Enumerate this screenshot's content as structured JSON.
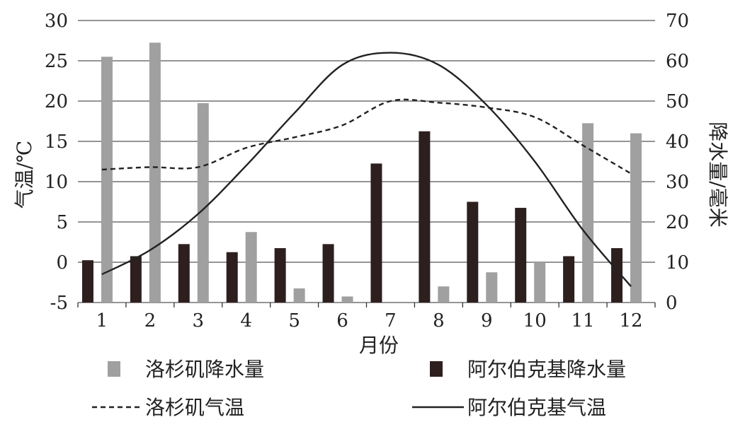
{
  "chart_data": {
    "type": "bar",
    "categories": [
      "1",
      "2",
      "3",
      "4",
      "5",
      "6",
      "7",
      "8",
      "9",
      "10",
      "11",
      "12"
    ],
    "xlabel": "月份",
    "ylabel_left": "气温/℃",
    "ylabel_right": "降水量/毫米",
    "ylim_left": [
      -5,
      30
    ],
    "ylim_right": [
      0,
      70
    ],
    "yticks_left": [
      "30",
      "25",
      "20",
      "15",
      "10",
      "5",
      "0",
      "-5"
    ],
    "yticks_right": [
      "70",
      "60",
      "50",
      "40",
      "30",
      "20",
      "10",
      "0"
    ],
    "grid": "horizontal",
    "legend_position": "bottom",
    "series": [
      {
        "name": "洛杉矶降水量",
        "kind": "bar",
        "axis": "right",
        "color": "#a0a0a0",
        "values": [
          61,
          64.5,
          49.5,
          17.5,
          3.5,
          1.5,
          0,
          4,
          7.5,
          10,
          44.5,
          42
        ]
      },
      {
        "name": "阿尔伯克基降水量",
        "kind": "bar",
        "axis": "right",
        "color": "#2e1f1f",
        "values": [
          10.5,
          11.5,
          14.5,
          12.5,
          13.5,
          14.5,
          34.5,
          42.5,
          25,
          23.5,
          11.5,
          13.5
        ]
      },
      {
        "name": "洛杉矶气温",
        "kind": "line",
        "style": "dashed",
        "axis": "left",
        "color": "#222222",
        "values": [
          11.5,
          11.8,
          11.8,
          14.2,
          15.5,
          17,
          20,
          19.8,
          19.2,
          18,
          14.5,
          11
        ]
      },
      {
        "name": "阿尔伯克基气温",
        "kind": "line",
        "style": "solid",
        "axis": "left",
        "color": "#222222",
        "values": [
          -1.5,
          1.5,
          6,
          12,
          18.5,
          24.5,
          26,
          24.5,
          19.5,
          12.5,
          4,
          -3
        ]
      }
    ]
  }
}
